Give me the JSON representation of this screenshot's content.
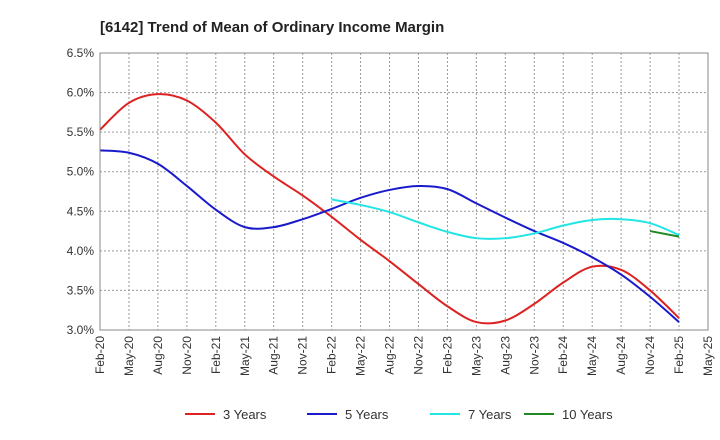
{
  "chart_data": {
    "type": "line",
    "title": "[6142]  Trend of Mean of Ordinary Income Margin",
    "xlabel": "",
    "ylabel": "",
    "x_ticks": [
      "Feb-20",
      "May-20",
      "Aug-20",
      "Nov-20",
      "Feb-21",
      "May-21",
      "Aug-21",
      "Nov-21",
      "Feb-22",
      "May-22",
      "Aug-22",
      "Nov-22",
      "Feb-23",
      "May-23",
      "Aug-23",
      "Nov-23",
      "Feb-24",
      "May-24",
      "Aug-24",
      "Nov-24",
      "Feb-25",
      "May-25"
    ],
    "y_ticks": [
      "3.0%",
      "3.5%",
      "4.0%",
      "4.5%",
      "5.0%",
      "5.5%",
      "6.0%",
      "6.5%"
    ],
    "ylim": [
      3.0,
      6.5
    ],
    "grid": "dotted",
    "legend_position": "bottom",
    "series": [
      {
        "name": "3 Years",
        "color": "#dd2222",
        "x": [
          "Feb-20",
          "May-20",
          "Aug-20",
          "Nov-20",
          "Feb-21",
          "May-21",
          "Aug-21",
          "Nov-21",
          "Feb-22",
          "May-22",
          "Aug-22",
          "Nov-22",
          "Feb-23",
          "May-23",
          "Aug-23",
          "Nov-23",
          "Feb-24",
          "May-24",
          "Aug-24",
          "Nov-24",
          "Feb-25"
        ],
        "values": [
          5.53,
          5.87,
          5.98,
          5.9,
          5.62,
          5.22,
          4.94,
          4.7,
          4.43,
          4.14,
          3.87,
          3.58,
          3.3,
          3.1,
          3.12,
          3.33,
          3.6,
          3.8,
          3.76,
          3.5,
          3.15
        ]
      },
      {
        "name": "5 Years",
        "color": "#1a1acc",
        "x": [
          "Feb-20",
          "May-20",
          "Aug-20",
          "Nov-20",
          "Feb-21",
          "May-21",
          "Aug-21",
          "Nov-21",
          "Feb-22",
          "May-22",
          "Aug-22",
          "Nov-22",
          "Feb-23",
          "May-23",
          "Aug-23",
          "Nov-23",
          "Feb-24",
          "May-24",
          "Aug-24",
          "Nov-24",
          "Feb-25"
        ],
        "values": [
          5.27,
          5.24,
          5.1,
          4.82,
          4.52,
          4.3,
          4.3,
          4.4,
          4.53,
          4.67,
          4.77,
          4.82,
          4.78,
          4.6,
          4.42,
          4.25,
          4.1,
          3.92,
          3.7,
          3.42,
          3.1
        ]
      },
      {
        "name": "7 Years",
        "color": "#22e5e5",
        "x": [
          "Feb-22",
          "May-22",
          "Aug-22",
          "Nov-22",
          "Feb-23",
          "May-23",
          "Aug-23",
          "Nov-23",
          "Feb-24",
          "May-24",
          "Aug-24",
          "Nov-24",
          "Feb-25"
        ],
        "values": [
          4.65,
          4.58,
          4.49,
          4.36,
          4.24,
          4.16,
          4.16,
          4.22,
          4.32,
          4.39,
          4.4,
          4.35,
          4.2
        ]
      },
      {
        "name": "10 Years",
        "color": "#228822",
        "x": [
          "Nov-24",
          "Feb-25"
        ],
        "values": [
          4.25,
          4.18
        ]
      }
    ]
  }
}
